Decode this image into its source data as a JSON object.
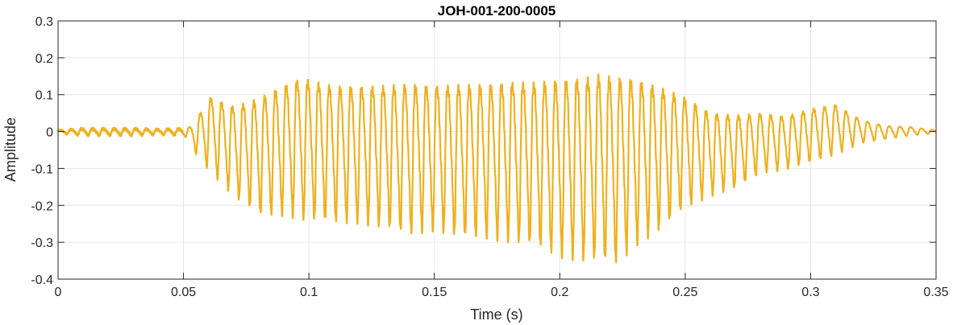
{
  "chart_data": {
    "type": "line",
    "title": "JOH-001-200-0005",
    "xlabel": "Time (s)",
    "ylabel": "Amplitude",
    "xlim": [
      0,
      0.35
    ],
    "ylim": [
      -0.4,
      0.3
    ],
    "grid": true,
    "x_ticks": [
      0,
      0.05,
      0.1,
      0.15,
      0.2,
      0.25,
      0.3,
      0.35
    ],
    "x_tick_labels": [
      "0",
      "0.05",
      "0.1",
      "0.15",
      "0.2",
      "0.25",
      "0.3",
      "0.35"
    ],
    "y_ticks": [
      -0.4,
      -0.3,
      -0.2,
      -0.1,
      0,
      0.1,
      0.2,
      0.3
    ],
    "y_tick_labels": [
      "-0.4",
      "-0.3",
      "-0.2",
      "-0.1",
      "0",
      "0.1",
      "0.2",
      "0.3"
    ],
    "series": [
      {
        "color": "#EDB120",
        "waveform_envelope": {
          "t": [
            0.0,
            0.01,
            0.02,
            0.03,
            0.04,
            0.05,
            0.053,
            0.055,
            0.06,
            0.07,
            0.08,
            0.09,
            0.097,
            0.11,
            0.12,
            0.14,
            0.15,
            0.16,
            0.17,
            0.18,
            0.19,
            0.2,
            0.21,
            0.215,
            0.223,
            0.23,
            0.24,
            0.25,
            0.26,
            0.27,
            0.28,
            0.29,
            0.3,
            0.31,
            0.32,
            0.33,
            0.34,
            0.35
          ],
          "max": [
            0.005,
            0.01,
            0.01,
            0.01,
            0.008,
            0.01,
            0.02,
            0.04,
            0.12,
            0.1,
            0.13,
            0.17,
            0.195,
            0.17,
            0.17,
            0.18,
            0.175,
            0.18,
            0.18,
            0.19,
            0.19,
            0.2,
            0.21,
            0.22,
            0.21,
            0.2,
            0.17,
            0.13,
            0.08,
            0.07,
            0.07,
            0.06,
            0.08,
            0.09,
            0.04,
            0.02,
            0.015,
            0.005
          ],
          "min": [
            -0.005,
            -0.01,
            -0.01,
            -0.01,
            -0.008,
            -0.01,
            -0.03,
            -0.06,
            -0.1,
            -0.17,
            -0.22,
            -0.22,
            -0.23,
            -0.24,
            -0.24,
            -0.27,
            -0.26,
            -0.28,
            -0.28,
            -0.29,
            -0.3,
            -0.33,
            -0.34,
            -0.34,
            -0.35,
            -0.3,
            -0.26,
            -0.2,
            -0.17,
            -0.15,
            -0.11,
            -0.1,
            -0.08,
            -0.06,
            -0.03,
            -0.02,
            -0.01,
            -0.005
          ]
        },
        "dominant_frequency_hz": 233
      }
    ]
  }
}
